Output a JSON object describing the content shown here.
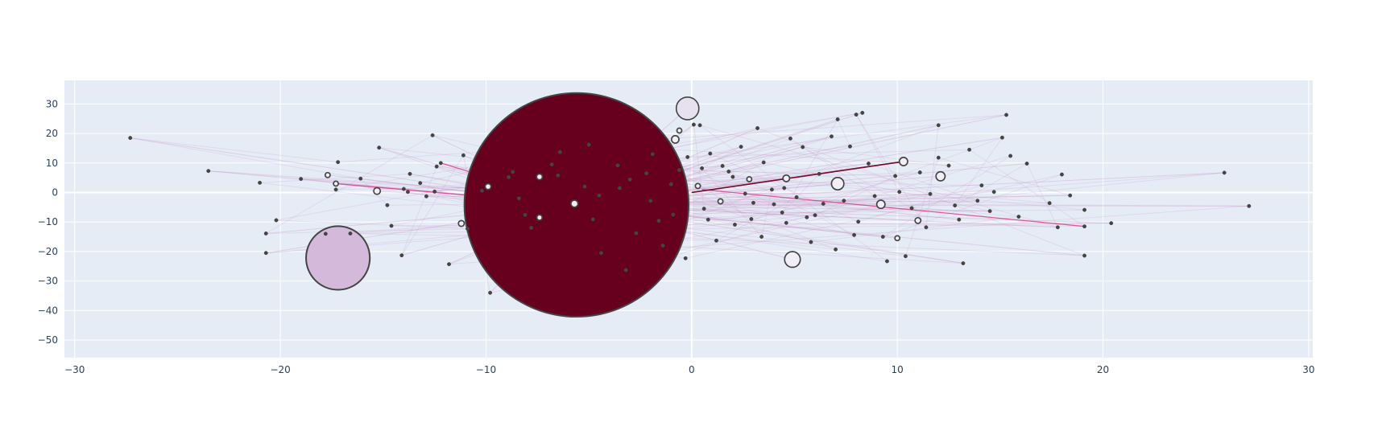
{
  "chart_data": {
    "type": "scatter",
    "title": "",
    "xlabel": "",
    "ylabel": "",
    "xlim": [
      -30.5,
      30.2
    ],
    "ylim": [
      -56,
      38
    ],
    "x_ticks": [
      -30,
      -20,
      -10,
      0,
      10,
      20,
      30
    ],
    "y_ticks": [
      30,
      20,
      10,
      0,
      -10,
      -20,
      -30,
      -40,
      -50
    ],
    "x_tick_labels": [
      "−30",
      "−20",
      "−10",
      "0",
      "10",
      "20",
      "30"
    ],
    "y_tick_labels": [
      "30",
      "20",
      "10",
      "0",
      "−10",
      "−20",
      "−30",
      "−40",
      "−50"
    ],
    "grid": true,
    "legend": "none",
    "colors": {
      "plot_bg": "#e5ecf6",
      "grid": "#ffffff",
      "tick_text": "#2a3f5f",
      "node_outline": "#444444",
      "edge": "#c994c7",
      "edge_strong": "#dd1c77",
      "edge_darkest": "#67001f"
    },
    "big_nodes": [
      {
        "x": -5.6,
        "y": -4.2,
        "radius_units": 5.45,
        "color": "#67001f"
      },
      {
        "x": -17.2,
        "y": -22.2,
        "radius_units": 1.55,
        "color": "#d4b9da"
      },
      {
        "x": -0.2,
        "y": 28.5,
        "radius_units": 0.55,
        "color": "#e7e1ef"
      },
      {
        "x": 4.9,
        "y": -22.7,
        "radius_units": 0.38,
        "color": "#f1eef6"
      },
      {
        "x": 7.1,
        "y": 3.0,
        "radius_units": 0.3,
        "color": "#f1eef6"
      },
      {
        "x": 12.1,
        "y": 5.5,
        "radius_units": 0.22,
        "color": "#f1eef6"
      },
      {
        "x": 10.3,
        "y": 10.5,
        "radius_units": 0.2,
        "color": "#f1eef6"
      },
      {
        "x": -0.8,
        "y": 18.0,
        "radius_units": 0.18,
        "color": "#f1eef6"
      },
      {
        "x": 9.2,
        "y": -4.0,
        "radius_units": 0.2,
        "color": "#f1eef6"
      },
      {
        "x": -15.3,
        "y": 0.5,
        "radius_units": 0.16,
        "color": "#f1eef6"
      },
      {
        "x": -5.7,
        "y": -3.8,
        "radius_units": 0.17,
        "color": "#f1eef6"
      },
      {
        "x": -7.4,
        "y": 5.3,
        "radius_units": 0.14,
        "color": "#f1eef6"
      },
      {
        "x": -9.9,
        "y": 2.0,
        "radius_units": 0.14,
        "color": "#f1eef6"
      },
      {
        "x": -7.4,
        "y": -8.5,
        "radius_units": 0.13,
        "color": "#f1eef6"
      },
      {
        "x": 4.6,
        "y": 4.8,
        "radius_units": 0.16,
        "color": "#f1eef6"
      },
      {
        "x": 11.0,
        "y": -9.5,
        "radius_units": 0.14,
        "color": "#f1eef6"
      },
      {
        "x": -11.2,
        "y": -10.5,
        "radius_units": 0.14,
        "color": "#f1eef6"
      },
      {
        "x": 1.4,
        "y": -3.0,
        "radius_units": 0.12,
        "color": "#f1eef6"
      },
      {
        "x": 0.3,
        "y": 2.2,
        "radius_units": 0.12,
        "color": "#f1eef6"
      },
      {
        "x": -17.7,
        "y": 5.9,
        "radius_units": 0.12,
        "color": "#f1eef6"
      },
      {
        "x": -17.3,
        "y": 3.0,
        "radius_units": 0.1,
        "color": "#f1eef6"
      },
      {
        "x": 10.0,
        "y": -15.5,
        "radius_units": 0.11,
        "color": "#f1eef6"
      },
      {
        "x": 2.8,
        "y": 4.5,
        "radius_units": 0.1,
        "color": "#f1eef6"
      },
      {
        "x": -0.6,
        "y": 21.0,
        "radius_units": 0.1,
        "color": "#f1eef6"
      }
    ],
    "small_nodes": [
      [
        -27.3,
        18.5
      ],
      [
        -23.5,
        7.3
      ],
      [
        -21.0,
        3.3
      ],
      [
        -20.2,
        -9.4
      ],
      [
        -20.7,
        -13.9
      ],
      [
        -20.7,
        -20.5
      ],
      [
        -19.0,
        4.6
      ],
      [
        -17.2,
        10.3
      ],
      [
        -17.3,
        1.0
      ],
      [
        -17.8,
        -14.0
      ],
      [
        -16.6,
        -13.9
      ],
      [
        -16.1,
        4.7
      ],
      [
        -15.2,
        15.2
      ],
      [
        -14.8,
        -4.3
      ],
      [
        -14.6,
        -11.3
      ],
      [
        -14.1,
        -21.3
      ],
      [
        -14.0,
        1.2
      ],
      [
        -13.8,
        0.2
      ],
      [
        -13.7,
        6.3
      ],
      [
        -13.2,
        3.2
      ],
      [
        -12.9,
        -1.3
      ],
      [
        -12.5,
        0.3
      ],
      [
        -12.4,
        8.8
      ],
      [
        -12.2,
        10.0
      ],
      [
        -12.6,
        19.4
      ],
      [
        -11.8,
        -24.3
      ],
      [
        -11.1,
        12.6
      ],
      [
        -10.2,
        0.6
      ],
      [
        -9.8,
        -34.0
      ],
      [
        -10.9,
        -12.3
      ],
      [
        -8.9,
        5.2
      ],
      [
        -8.4,
        -2.0
      ],
      [
        -8.7,
        7.0
      ],
      [
        -8.1,
        -7.6
      ],
      [
        -7.8,
        -12.0
      ],
      [
        -6.8,
        9.5
      ],
      [
        -6.5,
        5.8
      ],
      [
        -6.4,
        13.7
      ],
      [
        -5.2,
        2.0
      ],
      [
        -5.0,
        16.2
      ],
      [
        -4.5,
        -1.0
      ],
      [
        -4.8,
        -9.1
      ],
      [
        -4.4,
        -20.5
      ],
      [
        -3.6,
        9.2
      ],
      [
        -3.2,
        -26.3
      ],
      [
        -3.5,
        1.5
      ],
      [
        -2.7,
        -13.8
      ],
      [
        -2.2,
        6.5
      ],
      [
        -2.0,
        -2.8
      ],
      [
        -1.9,
        13.0
      ],
      [
        -1.4,
        -18.0
      ],
      [
        -1.0,
        2.8
      ],
      [
        -0.9,
        -7.5
      ],
      [
        -0.6,
        7.6
      ],
      [
        -0.3,
        -22.3
      ],
      [
        -0.2,
        12.0
      ],
      [
        0.1,
        23.0
      ],
      [
        0.4,
        22.8
      ],
      [
        0.6,
        -5.5
      ],
      [
        0.9,
        13.2
      ],
      [
        0.5,
        8.2
      ],
      [
        0.8,
        -9.2
      ],
      [
        1.2,
        -16.3
      ],
      [
        1.5,
        9.0
      ],
      [
        1.8,
        7.1
      ],
      [
        2.0,
        5.3
      ],
      [
        2.1,
        -10.9
      ],
      [
        2.4,
        15.5
      ],
      [
        2.6,
        -0.4
      ],
      [
        2.9,
        -9.0
      ],
      [
        3.2,
        21.8
      ],
      [
        3.4,
        -15.0
      ],
      [
        3.5,
        10.2
      ],
      [
        3.9,
        1.0
      ],
      [
        4.0,
        -4.0
      ],
      [
        4.4,
        -6.8
      ],
      [
        4.6,
        -10.3
      ],
      [
        4.8,
        18.3
      ],
      [
        5.1,
        -1.6
      ],
      [
        5.4,
        15.4
      ],
      [
        5.6,
        -8.4
      ],
      [
        5.8,
        -16.8
      ],
      [
        6.2,
        6.3
      ],
      [
        6.4,
        -3.8
      ],
      [
        6.8,
        19.0
      ],
      [
        7.0,
        -19.3
      ],
      [
        7.1,
        24.8
      ],
      [
        7.4,
        -2.8
      ],
      [
        7.7,
        15.6
      ],
      [
        7.9,
        -14.4
      ],
      [
        8.0,
        26.4
      ],
      [
        8.3,
        27.0
      ],
      [
        8.6,
        9.8
      ],
      [
        8.9,
        -1.2
      ],
      [
        9.3,
        -15.0
      ],
      [
        9.5,
        -23.3
      ],
      [
        9.9,
        5.6
      ],
      [
        10.1,
        0.2
      ],
      [
        10.4,
        -21.6
      ],
      [
        10.7,
        -5.3
      ],
      [
        11.1,
        6.8
      ],
      [
        11.4,
        -11.8
      ],
      [
        11.6,
        -0.5
      ],
      [
        12.0,
        22.8
      ],
      [
        12.5,
        9.1
      ],
      [
        12.8,
        -4.4
      ],
      [
        13.2,
        -24.0
      ],
      [
        13.5,
        14.5
      ],
      [
        13.9,
        -2.8
      ],
      [
        14.1,
        2.4
      ],
      [
        14.5,
        -6.3
      ],
      [
        14.7,
        0.2
      ],
      [
        15.1,
        18.6
      ],
      [
        15.3,
        26.3
      ],
      [
        15.5,
        12.4
      ],
      [
        15.9,
        -8.2
      ],
      [
        16.3,
        9.8
      ],
      [
        17.4,
        -3.6
      ],
      [
        17.8,
        -11.8
      ],
      [
        18.0,
        6.1
      ],
      [
        18.4,
        -1.0
      ],
      [
        19.1,
        -5.9
      ],
      [
        19.1,
        -21.4
      ],
      [
        19.1,
        -11.5
      ],
      [
        20.4,
        -10.4
      ],
      [
        25.9,
        6.7
      ],
      [
        27.1,
        -4.6
      ],
      [
        12.0,
        11.8
      ],
      [
        13.0,
        -9.2
      ],
      [
        8.1,
        -9.9
      ],
      [
        6.0,
        -7.7
      ],
      [
        3.0,
        -3.5
      ],
      [
        4.5,
        1.5
      ],
      [
        -1.6,
        -9.6
      ],
      [
        -3.0,
        4.4
      ]
    ],
    "edges_from_big_node": [
      [
        -27.3,
        18.5
      ],
      [
        -23.5,
        7.3
      ],
      [
        -17.7,
        5.9
      ],
      [
        -17.3,
        3.0
      ],
      [
        -15.3,
        0.5
      ],
      [
        -12.6,
        19.4
      ],
      [
        -11.1,
        12.6
      ],
      [
        -9.8,
        -34.0
      ],
      [
        -3.2,
        -26.3
      ],
      [
        -0.2,
        28.5
      ],
      [
        0.1,
        23.0
      ],
      [
        2.4,
        15.5
      ],
      [
        3.2,
        21.8
      ],
      [
        4.9,
        -22.7
      ],
      [
        7.1,
        3.0
      ],
      [
        7.1,
        24.8
      ],
      [
        8.3,
        27.0
      ],
      [
        10.3,
        10.5
      ],
      [
        11.0,
        -9.5
      ],
      [
        12.1,
        5.5
      ],
      [
        13.2,
        -24.0
      ],
      [
        15.3,
        26.3
      ],
      [
        15.1,
        18.6
      ],
      [
        16.3,
        9.8
      ],
      [
        17.8,
        -11.8
      ],
      [
        18.4,
        -1.0
      ],
      [
        19.1,
        -21.4
      ],
      [
        20.4,
        -10.4
      ],
      [
        25.9,
        6.7
      ],
      [
        27.1,
        -4.6
      ],
      [
        9.3,
        -15.0
      ],
      [
        10.0,
        -15.5
      ],
      [
        12.0,
        22.8
      ],
      [
        5.4,
        15.4
      ],
      [
        6.8,
        19.0
      ],
      [
        -14.1,
        -21.3
      ],
      [
        -11.8,
        -24.3
      ],
      [
        -20.7,
        -20.5
      ],
      [
        -20.7,
        -13.9
      ],
      [
        -19.0,
        4.6
      ],
      [
        -15.2,
        15.2
      ],
      [
        14.5,
        -6.3
      ],
      [
        13.9,
        -2.8
      ],
      [
        9.2,
        -4.0
      ],
      [
        4.6,
        4.8
      ],
      [
        1.4,
        -3.0
      ],
      [
        8.6,
        9.8
      ],
      [
        11.6,
        -0.5
      ],
      [
        3.5,
        10.2
      ],
      [
        6.2,
        6.3
      ],
      [
        -16.1,
        4.7
      ],
      [
        -13.7,
        6.3
      ],
      [
        -12.4,
        8.8
      ]
    ],
    "strong_edges": [
      {
        "from": [
          -17.3,
          3.0
        ],
        "to": [
          -5.6,
          -4.2
        ]
      },
      {
        "from": [
          0.0,
          0.0
        ],
        "to": [
          10.3,
          10.5
        ]
      },
      {
        "from": [
          0.5,
          1.0
        ],
        "to": [
          19.1,
          -11.5
        ]
      },
      {
        "from": [
          -12.2,
          10.0
        ],
        "to": [
          -5.6,
          -4.2
        ]
      }
    ],
    "darkest_edges": [
      {
        "from": [
          0.0,
          0.0
        ],
        "to": [
          10.3,
          10.5
        ]
      }
    ]
  }
}
